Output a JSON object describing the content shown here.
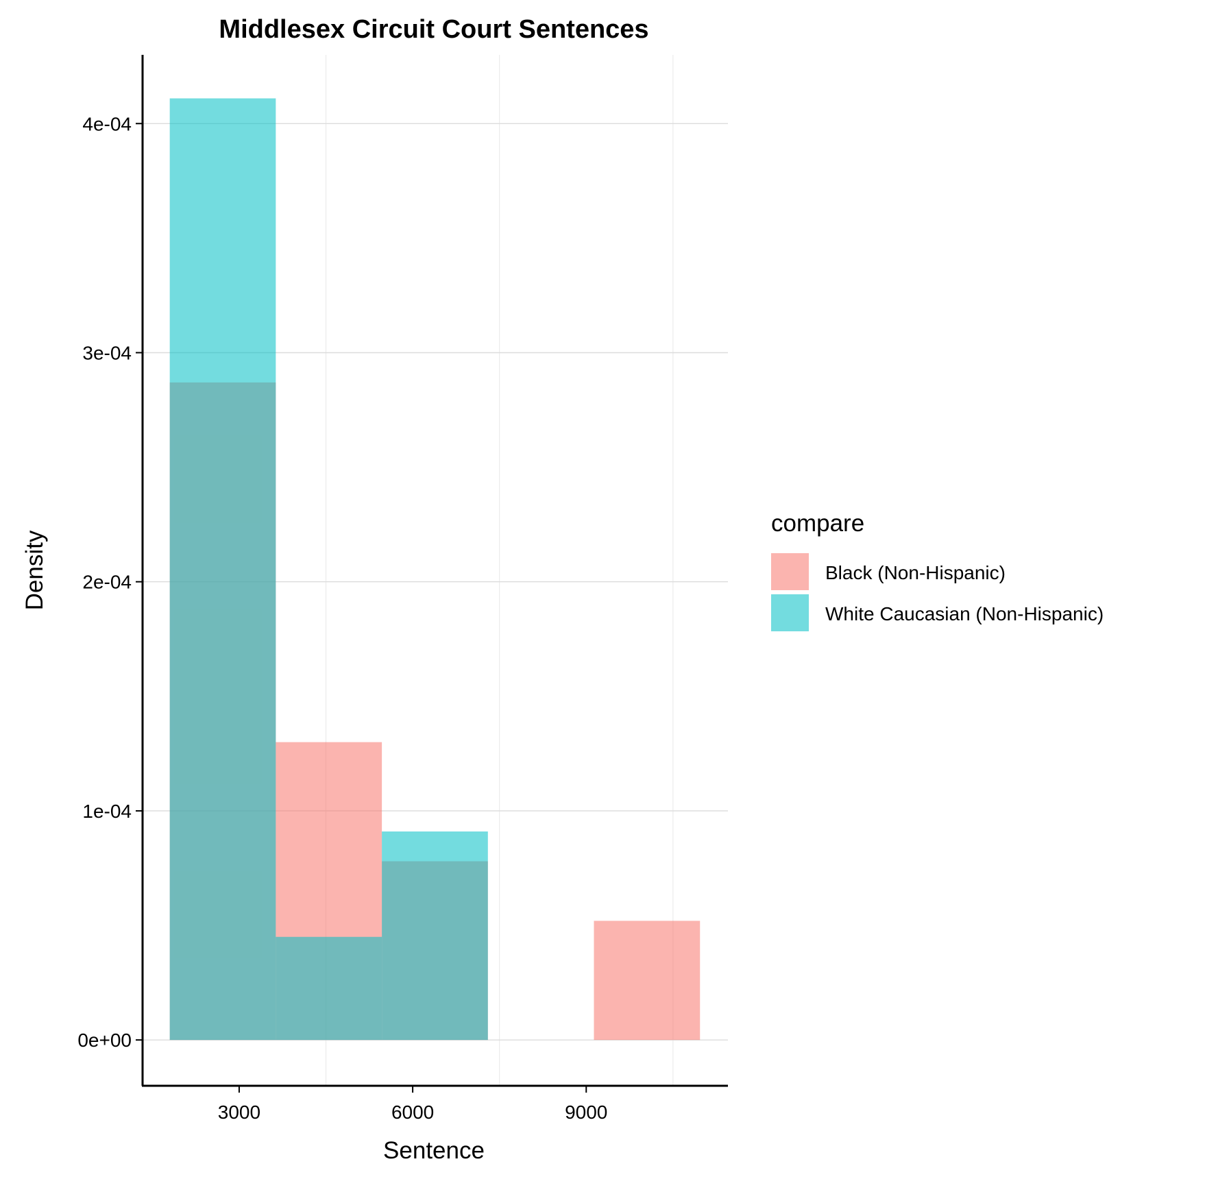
{
  "chart_data": {
    "type": "bar",
    "title": "Middlesex Circuit Court Sentences",
    "xlabel": "Sentence",
    "ylabel": "Density",
    "x_ticks": [
      "3000",
      "6000",
      "9000"
    ],
    "y_ticks": [
      "0e+00",
      "1e-04",
      "2e-04",
      "3e-04",
      "4e-04"
    ],
    "xlim": [
      1330,
      11450
    ],
    "ylim": [
      -2e-05,
      0.00043
    ],
    "grid": true,
    "legend": {
      "title": "compare",
      "placement": "right"
    },
    "bins": [
      {
        "x_start": 1800,
        "x_end": 3633
      },
      {
        "x_start": 3633,
        "x_end": 5467
      },
      {
        "x_start": 5467,
        "x_end": 7300
      },
      {
        "x_start": 7300,
        "x_end": 9133
      },
      {
        "x_start": 9133,
        "x_end": 10967
      }
    ],
    "series": [
      {
        "name": "Black (Non-Hispanic)",
        "color": "#F8766D",
        "values": [
          0.000287,
          0.00013,
          7.8e-05,
          0,
          5.2e-05
        ]
      },
      {
        "name": "White Caucasian (Non-Hispanic)",
        "color": "#00BFC4",
        "values": [
          0.000411,
          4.5e-05,
          9.1e-05,
          0,
          0
        ]
      }
    ],
    "opacity": 0.55
  }
}
